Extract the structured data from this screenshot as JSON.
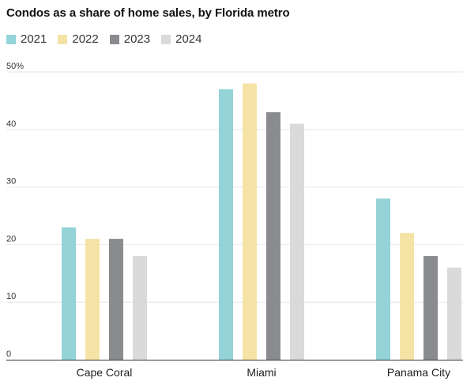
{
  "chart_data": {
    "type": "bar",
    "title": "Condos as a share of home sales, by Florida metro",
    "categories": [
      "Cape Coral",
      "Miami",
      "Panama City"
    ],
    "series": [
      {
        "name": "2021",
        "color": "#94d3d8",
        "values": [
          23,
          47,
          28
        ]
      },
      {
        "name": "2022",
        "color": "#f5e3a6",
        "values": [
          21,
          48,
          22
        ]
      },
      {
        "name": "2023",
        "color": "#8a8b8e",
        "values": [
          21,
          43,
          18
        ]
      },
      {
        "name": "2024",
        "color": "#dadadb",
        "values": [
          18,
          41,
          16
        ]
      }
    ],
    "ylim": [
      0,
      50
    ],
    "yticks": [
      {
        "value": 0,
        "label": "0"
      },
      {
        "value": 10,
        "label": "10"
      },
      {
        "value": 20,
        "label": "20"
      },
      {
        "value": 30,
        "label": "30"
      },
      {
        "value": 40,
        "label": "40"
      },
      {
        "value": 50,
        "label": "50%"
      }
    ],
    "grid": true,
    "legend_position": "top-left",
    "xlabel": "",
    "ylabel": ""
  }
}
